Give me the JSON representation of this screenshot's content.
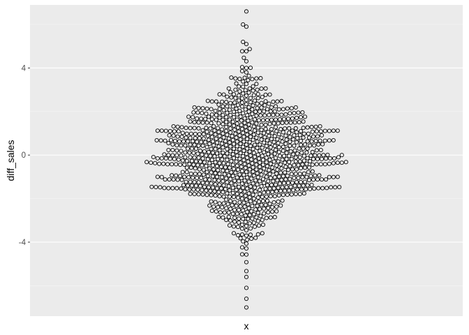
{
  "chart_data": {
    "type": "scatter",
    "title": "",
    "xlabel": "x",
    "ylabel": "diff_sales",
    "ylim": [
      -7.4,
      6.9
    ],
    "y_ticks": [
      -4,
      0,
      4
    ],
    "y_tick_labels": [
      "-4",
      "0",
      "4"
    ],
    "x_ticks": [],
    "grid": true,
    "legend": "none",
    "marker": "open circle",
    "layout": "beeswarm",
    "n_points": 1000,
    "y_min": -7.0,
    "y_max": 6.6,
    "distribution": "approximately symmetric about 0, density highest near 0, extreme values near -7.0 and 6.6",
    "selected_points": [
      {
        "y": 6.6
      },
      {
        "y": 6.0
      },
      {
        "y": 5.9
      },
      {
        "y": 5.2
      },
      {
        "y": 5.1
      },
      {
        "y": -5.6
      },
      {
        "y": -6.1
      },
      {
        "y": -6.6
      },
      {
        "y": -7.0
      }
    ]
  },
  "colors": {
    "panel_background": "#ebebeb",
    "grid_major": "#ffffff",
    "grid_minor": "#f5f5f5",
    "point_stroke": "#000000",
    "tick_text": "#4d4d4d",
    "axis_title": "#000000"
  }
}
